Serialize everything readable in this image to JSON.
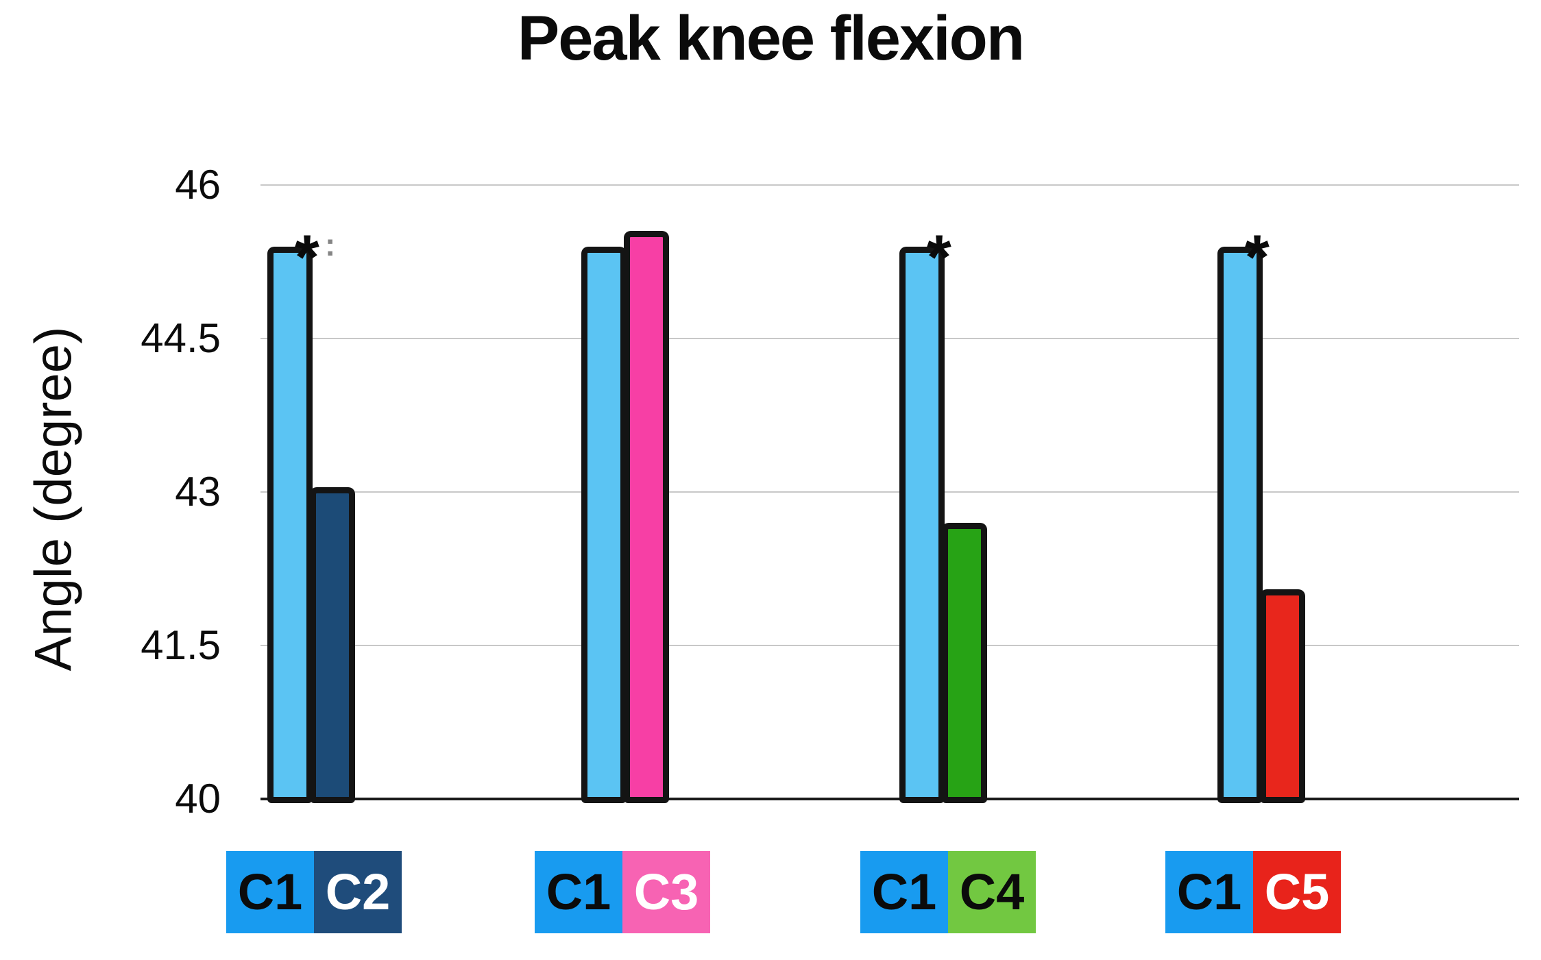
{
  "title": "Peak knee flexion",
  "y_axis": {
    "label": "Angle (degree)",
    "tick_labels": [
      "46",
      "44.5",
      "43",
      "41.5",
      "40"
    ]
  },
  "chart_data": {
    "type": "bar",
    "title": "Peak knee flexion",
    "xlabel": "",
    "ylabel": "Angle (degree)",
    "ylim": [
      40,
      46
    ],
    "yticks": [
      40,
      41.5,
      43,
      44.5,
      46
    ],
    "grid": true,
    "legend_position": "bottom",
    "groups": [
      {
        "series": [
          "C1",
          "C2"
        ],
        "values": [
          45.4,
          43.05
        ],
        "annotation": "*",
        "annotation_faint": ":"
      },
      {
        "series": [
          "C1",
          "C3"
        ],
        "values": [
          45.4,
          45.55
        ],
        "annotation": "",
        "annotation_faint": ""
      },
      {
        "series": [
          "C1",
          "C4"
        ],
        "values": [
          45.4,
          42.7
        ],
        "annotation": "*",
        "annotation_faint": ""
      },
      {
        "series": [
          "C1",
          "C5"
        ],
        "values": [
          45.4,
          42.05
        ],
        "annotation": "*",
        "annotation_faint": ""
      }
    ],
    "legend": [
      {
        "left": "C1",
        "right": "C2"
      },
      {
        "left": "C1",
        "right": "C3"
      },
      {
        "left": "C1",
        "right": "C4"
      },
      {
        "left": "C1",
        "right": "C5"
      }
    ]
  },
  "colors": {
    "c1_bar": "#5BC4F3",
    "c1_legend": "#189BF0",
    "c1_legend_text": "#0B0B0B",
    "c2_bar": "#1C4B77",
    "c2_legend": "#1F4C7B",
    "c2_legend_text": "#FFFFFF",
    "c3_bar": "#F73FA5",
    "c3_legend": "#F763B3",
    "c3_legend_text": "#FFFFFF",
    "c4_bar": "#27A315",
    "c4_legend": "#72C841",
    "c4_legend_text": "#0B0B0B",
    "c5_bar": "#E8261C",
    "c5_legend": "#E8231B",
    "c5_legend_text": "#FFFFFF",
    "bar_outline": "#141414",
    "grid": "#C8C8C8",
    "axis": "#1A1A1A",
    "text": "#0B0B0B"
  }
}
